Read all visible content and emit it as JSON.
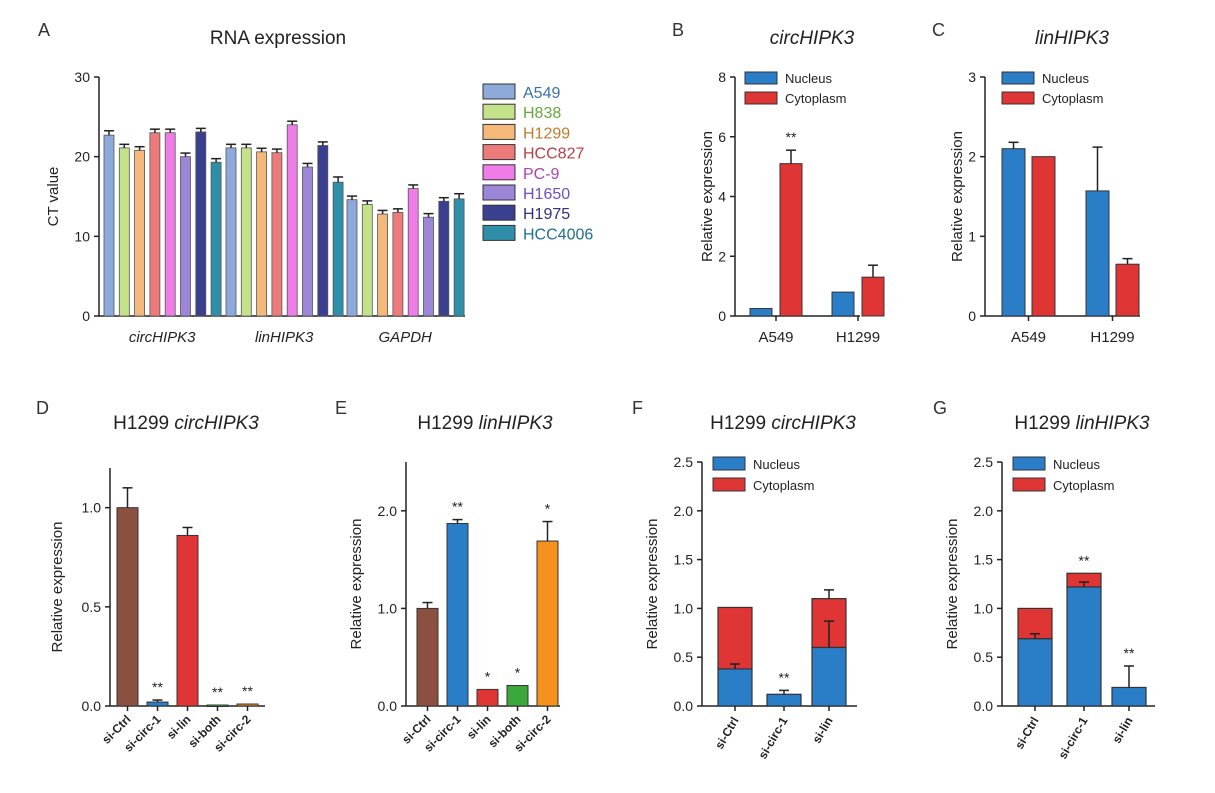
{
  "chart_data": [
    {
      "id": "A",
      "type": "bar",
      "panel_label": "A",
      "title": "RNA expression",
      "ylabel": "CT value",
      "ylim": [
        0,
        30
      ],
      "yticks": [
        "0",
        "10",
        "20",
        "30"
      ],
      "categories": [
        "circHIPK3",
        "linHIPK3",
        "GAPDH"
      ],
      "legend": "right",
      "series": [
        {
          "name": "A549",
          "color": "#8eaadb",
          "text_color": "#3a6fb0",
          "values": [
            22.7,
            21.1,
            14.6
          ],
          "errors": [
            0.3,
            0.2,
            0.2
          ]
        },
        {
          "name": "H838",
          "color": "#c4e28a",
          "text_color": "#66a83a",
          "values": [
            21.1,
            21.1,
            14.0
          ],
          "errors": [
            0.2,
            0.2,
            0.2
          ]
        },
        {
          "name": "H1299",
          "color": "#f4b97a",
          "text_color": "#c47a2a",
          "values": [
            20.8,
            20.6,
            12.8
          ],
          "errors": [
            0.2,
            0.2,
            0.2
          ]
        },
        {
          "name": "HCC827",
          "color": "#ee7b7b",
          "text_color": "#b84040",
          "values": [
            23.0,
            20.5,
            13.0
          ],
          "errors": [
            0.2,
            0.2,
            0.2
          ]
        },
        {
          "name": "PC-9",
          "color": "#f07ce8",
          "text_color": "#b040b0",
          "values": [
            23.0,
            24.0,
            16.0
          ],
          "errors": [
            0.2,
            0.2,
            0.2
          ]
        },
        {
          "name": "H1650",
          "color": "#9b86d8",
          "text_color": "#7050c0",
          "values": [
            20.0,
            18.7,
            12.4
          ],
          "errors": [
            0.2,
            0.2,
            0.2
          ]
        },
        {
          "name": "H1975",
          "color": "#3b3f8f",
          "text_color": "#303080",
          "values": [
            23.1,
            21.4,
            14.4
          ],
          "errors": [
            0.2,
            0.2,
            0.2
          ]
        },
        {
          "name": "HCC4006",
          "color": "#2f8fa8",
          "text_color": "#207090",
          "values": [
            19.3,
            16.8,
            14.7
          ],
          "errors": [
            0.2,
            0.4,
            0.4
          ]
        }
      ]
    },
    {
      "id": "B",
      "type": "bar",
      "panel_label": "B",
      "title": "circHIPK3",
      "ylabel": "Relative expression",
      "ylim": [
        0,
        8
      ],
      "yticks": [
        "0",
        "2",
        "4",
        "6",
        "8"
      ],
      "categories": [
        "A549",
        "H1299"
      ],
      "legend": "top-left",
      "series": [
        {
          "name": "Nucleus",
          "color": "#2a7ec8",
          "values": [
            0.25,
            0.8
          ],
          "errors": [
            0,
            0
          ]
        },
        {
          "name": "Cytoplasm",
          "color": "#e03535",
          "values": [
            5.1,
            1.3
          ],
          "errors": [
            0.45,
            0.4
          ]
        }
      ],
      "annotations": [
        {
          "text": "**",
          "category": "A549",
          "series": "Cytoplasm"
        }
      ]
    },
    {
      "id": "C",
      "type": "bar",
      "panel_label": "C",
      "title": "linHIPK3",
      "ylabel": "Relative expression",
      "ylim": [
        0,
        3
      ],
      "yticks": [
        "0",
        "1",
        "2",
        "3"
      ],
      "categories": [
        "A549",
        "H1299"
      ],
      "legend": "top-left",
      "series": [
        {
          "name": "Nucleus",
          "color": "#2a7ec8",
          "values": [
            2.1,
            1.57
          ],
          "errors": [
            0.08,
            0.55
          ]
        },
        {
          "name": "Cytoplasm",
          "color": "#e03535",
          "values": [
            2.0,
            0.65
          ],
          "errors": [
            0,
            0.07
          ]
        }
      ]
    },
    {
      "id": "D",
      "type": "bar",
      "panel_label": "D",
      "title_prefix": "H1299",
      "title_italic": "circHIPK3",
      "ylabel": "Relative expression",
      "ylim": [
        0,
        1.2
      ],
      "yticks": [
        "0.0",
        "0.5",
        "1.0"
      ],
      "categories": [
        "si-Ctrl",
        "si-circ-1",
        "si-lin",
        "si-both",
        "si-circ-2"
      ],
      "values": [
        1.0,
        0.02,
        0.86,
        0.005,
        0.01
      ],
      "errors": [
        0.1,
        0.01,
        0.04,
        0,
        0
      ],
      "colors": [
        "#8b5040",
        "#2a7ec8",
        "#e03535",
        "#3aa83a",
        "#f5921e"
      ],
      "annotations": [
        "",
        "**",
        "",
        "**",
        "**"
      ]
    },
    {
      "id": "E",
      "type": "bar",
      "panel_label": "E",
      "title_prefix": "H1299",
      "title_italic": "linHIPK3",
      "ylabel": "Relative expression",
      "ylim": [
        0,
        2.5
      ],
      "yticks": [
        "0.0",
        "1.0",
        "2.0"
      ],
      "categories": [
        "si-Ctrl",
        "si-circ-1",
        "si-lin",
        "si-both",
        "si-circ-2"
      ],
      "values": [
        1.0,
        1.87,
        0.17,
        0.21,
        1.69
      ],
      "errors": [
        0.06,
        0.04,
        0,
        0,
        0.2
      ],
      "colors": [
        "#8b5040",
        "#2a7ec8",
        "#e03535",
        "#3aa83a",
        "#f5921e"
      ],
      "annotations": [
        "",
        "**",
        "*",
        "*",
        "*"
      ]
    },
    {
      "id": "F",
      "type": "stacked-bar",
      "panel_label": "F",
      "title_prefix": "H1299",
      "title_italic": "circHIPK3",
      "ylabel": "Relative expression",
      "ylim": [
        0,
        2.5
      ],
      "yticks": [
        "0.0",
        "0.5",
        "1.0",
        "1.5",
        "2.0",
        "2.5"
      ],
      "categories": [
        "si-Ctrl",
        "si-circ-1",
        "si-lin"
      ],
      "legend": "top-left",
      "series": [
        {
          "name": "Nucleus",
          "color": "#2a7ec8",
          "values": [
            0.38,
            0.12,
            0.6
          ],
          "errors": [
            0.05,
            0.04,
            0.27
          ]
        },
        {
          "name": "Cytoplasm",
          "color": "#e03535",
          "values": [
            0.63,
            0.0,
            0.5
          ],
          "errors": [
            0,
            0,
            0.09
          ]
        }
      ],
      "annotations": [
        "",
        "**",
        ""
      ]
    },
    {
      "id": "G",
      "type": "stacked-bar",
      "panel_label": "G",
      "title_prefix": "H1299",
      "title_italic": "linHIPK3",
      "ylabel": "Relative expression",
      "ylim": [
        0,
        2.5
      ],
      "yticks": [
        "0.0",
        "0.5",
        "1.0",
        "1.5",
        "2.0",
        "2.5"
      ],
      "categories": [
        "si-Ctrl",
        "si-circ-1",
        "si-lin"
      ],
      "legend": "top-left",
      "series": [
        {
          "name": "Nucleus",
          "color": "#2a7ec8",
          "values": [
            0.69,
            1.22,
            0.19
          ],
          "errors": [
            0.05,
            0.05,
            0.22
          ]
        },
        {
          "name": "Cytoplasm",
          "color": "#e03535",
          "values": [
            0.31,
            0.14,
            0.0
          ],
          "errors": [
            0,
            0,
            0
          ]
        }
      ],
      "annotations": [
        "",
        "**",
        "**"
      ]
    }
  ]
}
